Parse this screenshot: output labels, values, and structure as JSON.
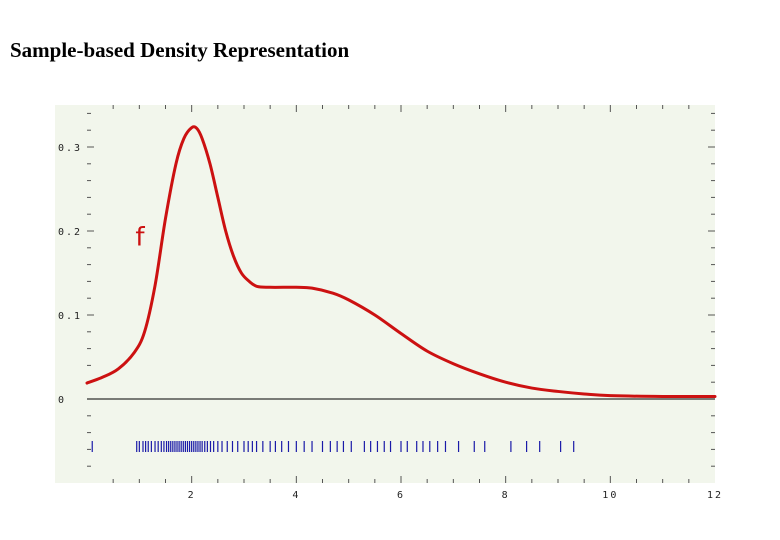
{
  "title": "Sample-based Density Representation",
  "colors": {
    "plot_background": "#f2f6ec",
    "curve": "#cc1111",
    "samples": "#1a1aa8",
    "axis": "#000000"
  },
  "chart_data": {
    "type": "line",
    "title": "Sample-based Density Representation",
    "xlabel": "",
    "ylabel": "",
    "xlim": [
      0,
      12
    ],
    "ylim": [
      -0.1,
      0.35
    ],
    "grid": false,
    "x_ticks": [
      2,
      4,
      6,
      8,
      10,
      12
    ],
    "x_tick_labels": [
      "2",
      "4",
      "6",
      "8",
      "10",
      "12"
    ],
    "y_ticks": [
      0,
      0.1,
      0.2,
      0.3
    ],
    "y_tick_labels": [
      "0",
      "0.1",
      "0.2",
      "0.3"
    ],
    "annotation": {
      "text": "f",
      "x": 1.0,
      "y": 0.19
    },
    "series": [
      {
        "name": "f",
        "x": [
          0,
          0.3,
          0.6,
          0.9,
          1.1,
          1.3,
          1.5,
          1.7,
          1.85,
          2.0,
          2.1,
          2.2,
          2.35,
          2.5,
          2.65,
          2.8,
          2.95,
          3.1,
          3.25,
          3.5,
          4.0,
          4.3,
          4.7,
          5.0,
          5.5,
          6.0,
          6.5,
          7.0,
          7.5,
          8.0,
          8.5,
          9.0,
          9.5,
          10.0,
          11.0,
          12.0
        ],
        "y": [
          0.019,
          0.026,
          0.036,
          0.055,
          0.08,
          0.135,
          0.215,
          0.28,
          0.31,
          0.323,
          0.322,
          0.31,
          0.28,
          0.24,
          0.2,
          0.17,
          0.15,
          0.14,
          0.134,
          0.133,
          0.133,
          0.132,
          0.126,
          0.118,
          0.1,
          0.078,
          0.057,
          0.042,
          0.03,
          0.02,
          0.013,
          0.009,
          0.006,
          0.004,
          0.003,
          0.003
        ]
      }
    ],
    "samples": [
      0.1,
      0.95,
      1.0,
      1.07,
      1.12,
      1.17,
      1.23,
      1.3,
      1.36,
      1.42,
      1.47,
      1.52,
      1.56,
      1.6,
      1.64,
      1.68,
      1.72,
      1.76,
      1.8,
      1.84,
      1.88,
      1.92,
      1.96,
      2.0,
      2.04,
      2.08,
      2.12,
      2.16,
      2.2,
      2.25,
      2.3,
      2.36,
      2.42,
      2.5,
      2.58,
      2.68,
      2.78,
      2.88,
      3.0,
      3.08,
      3.16,
      3.24,
      3.36,
      3.5,
      3.6,
      3.72,
      3.85,
      4.0,
      4.15,
      4.3,
      4.5,
      4.65,
      4.78,
      4.9,
      5.05,
      5.3,
      5.42,
      5.55,
      5.68,
      5.8,
      6.0,
      6.12,
      6.3,
      6.42,
      6.55,
      6.7,
      6.85,
      7.1,
      7.4,
      7.6,
      8.1,
      8.4,
      8.65,
      9.05,
      9.3
    ]
  }
}
